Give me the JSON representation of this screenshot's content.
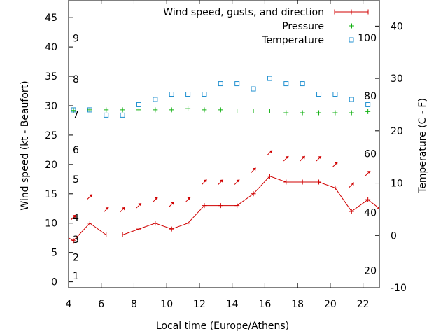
{
  "colors": {
    "wind": "#d00000",
    "pressure": "#10b010",
    "temperature": "#2090d0",
    "axis": "#000000"
  },
  "chart_data": {
    "type": "line",
    "xlabel": "Local time (Europe/Athens)",
    "ylabel_left": "Wind speed (kt - Beaufort)",
    "ylabel_right": "Temperature (C - F)",
    "xlim": [
      4,
      23
    ],
    "ylim_left": [
      -1,
      48
    ],
    "ylim_right": [
      -10,
      45
    ],
    "x_ticks": [
      4,
      6,
      8,
      10,
      12,
      14,
      16,
      18,
      20,
      22
    ],
    "y_ticks_left": [
      0,
      5,
      10,
      15,
      20,
      25,
      30,
      35,
      40,
      45
    ],
    "y_ticks_right": [
      -10,
      0,
      10,
      20,
      30,
      40
    ],
    "beaufort_labels": [
      {
        "label": "1",
        "wind": 1
      },
      {
        "label": "2",
        "wind": 4.2
      },
      {
        "label": "3",
        "wind": 7.2
      },
      {
        "label": "4",
        "wind": 11
      },
      {
        "label": "5",
        "wind": 17.5
      },
      {
        "label": "6",
        "wind": 22.5
      },
      {
        "label": "7",
        "wind": 28.5
      },
      {
        "label": "8",
        "wind": 34.5
      },
      {
        "label": "9",
        "wind": 41.5
      }
    ],
    "fahrenheit_labels": [
      {
        "label": "20",
        "temp": -6.7
      },
      {
        "label": "40",
        "temp": 4.4
      },
      {
        "label": "60",
        "temp": 15.6
      },
      {
        "label": "80",
        "temp": 26.7
      },
      {
        "label": "100",
        "temp": 37.8
      }
    ],
    "legend": [
      {
        "label": "Wind speed, gusts, and direction",
        "series": "wind"
      },
      {
        "label": "Pressure",
        "series": "pressure"
      },
      {
        "label": "Temperature",
        "series": "temperature"
      }
    ],
    "legend_position": "top-right",
    "wind": {
      "x": [
        3.7,
        4.3,
        5.3,
        6.3,
        7.3,
        8.3,
        9.3,
        10.3,
        11.3,
        12.3,
        13.3,
        14.3,
        15.3,
        16.3,
        17.3,
        18.3,
        19.3,
        20.3,
        21.3,
        22.3,
        23.0
      ],
      "speed": [
        8,
        7,
        10,
        8,
        8,
        9,
        10,
        9,
        10,
        13,
        13,
        13,
        15,
        18,
        17,
        17,
        17,
        16,
        12,
        14,
        12.5
      ]
    },
    "wind_arrows": {
      "x": [
        4.3,
        5.3,
        6.3,
        7.3,
        8.3,
        9.3,
        10.3,
        11.3,
        12.3,
        13.3,
        14.3,
        15.3,
        16.3,
        17.3,
        18.3,
        19.3,
        20.3,
        21.3,
        22.3
      ],
      "y": [
        11,
        14.5,
        12.3,
        12.3,
        13,
        14,
        13.2,
        14,
        17,
        17,
        17,
        19,
        22,
        21,
        21,
        21,
        20,
        16.5,
        18.5
      ]
    },
    "pressure": {
      "x": [
        4.3,
        5.3,
        6.3,
        7.3,
        8.3,
        9.3,
        10.3,
        11.3,
        12.3,
        13.3,
        14.3,
        15.3,
        16.3,
        17.3,
        18.3,
        19.3,
        20.3,
        21.3,
        22.3
      ],
      "y": [
        29.2,
        29.3,
        29.3,
        29.3,
        29.3,
        29.3,
        29.3,
        29.5,
        29.3,
        29.3,
        29.1,
        29.1,
        29.1,
        28.8,
        28.8,
        28.8,
        28.8,
        28.8,
        29.0
      ]
    },
    "temperature": {
      "x": [
        4.3,
        5.3,
        6.3,
        7.3,
        8.3,
        9.3,
        10.3,
        11.3,
        12.3,
        13.3,
        14.3,
        15.3,
        16.3,
        17.3,
        18.3,
        19.3,
        20.3,
        21.3,
        22.3
      ],
      "y": [
        24,
        24,
        23,
        23,
        25,
        26,
        27,
        27,
        27,
        29,
        29,
        28,
        30,
        29,
        29,
        27,
        27,
        26,
        25
      ]
    }
  }
}
